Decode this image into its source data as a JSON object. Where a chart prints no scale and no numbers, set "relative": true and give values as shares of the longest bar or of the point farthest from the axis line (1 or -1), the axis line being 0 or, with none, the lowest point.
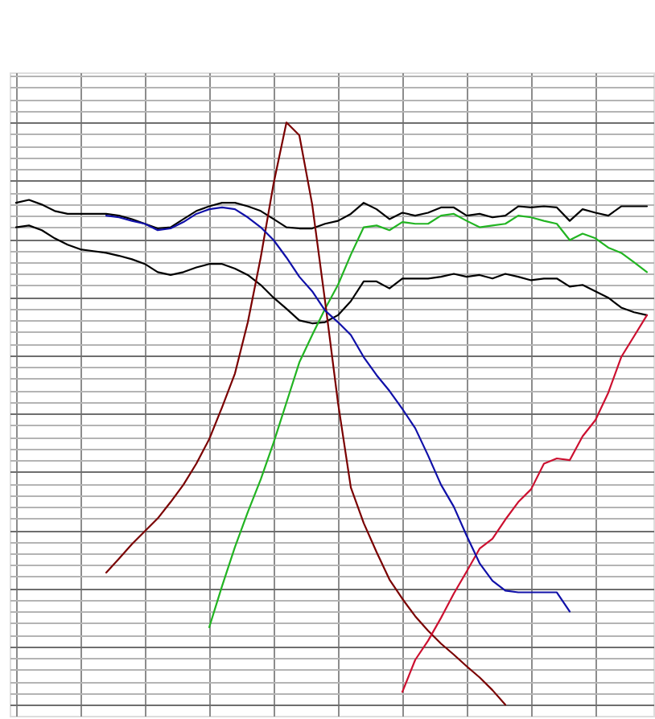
{
  "chart_data": {
    "type": "line",
    "relative": true,
    "grid": true,
    "line_style": "solid",
    "categories": [
      null,
      null,
      null,
      null,
      null,
      null,
      null,
      null,
      null,
      null,
      null,
      null,
      null,
      null,
      null,
      null,
      null,
      null,
      null,
      null,
      null,
      null,
      null,
      null,
      null,
      null,
      null,
      null,
      null,
      null,
      null,
      null,
      null,
      null,
      null,
      null,
      null,
      null,
      null,
      null,
      null,
      null,
      null,
      null,
      null,
      null,
      null,
      null,
      null,
      null
    ],
    "series": [
      {
        "color": "#000000",
        "values": [
          0.862,
          0.867,
          0.859,
          0.848,
          0.843,
          0.843,
          0.843,
          0.843,
          0.84,
          0.834,
          0.826,
          0.818,
          0.82,
          0.834,
          0.848,
          0.856,
          0.862,
          0.862,
          0.856,
          0.848,
          0.834,
          0.82,
          0.818,
          0.818,
          0.826,
          0.831,
          0.843,
          0.862,
          0.851,
          0.834,
          0.845,
          0.84,
          0.845,
          0.854,
          0.854,
          0.84,
          0.843,
          0.837,
          0.84,
          0.856,
          0.854,
          0.856,
          0.854,
          0.831,
          0.851,
          0.845,
          0.84,
          0.856,
          0.856,
          0.856
        ]
      },
      {
        "color": "#000000",
        "values": [
          0.82,
          0.823,
          0.815,
          0.801,
          0.79,
          0.782,
          0.779,
          0.776,
          0.771,
          0.765,
          0.757,
          0.743,
          0.738,
          0.743,
          0.751,
          0.757,
          0.757,
          0.749,
          0.738,
          0.721,
          0.699,
          0.68,
          0.66,
          0.655,
          0.657,
          0.669,
          0.693,
          0.727,
          0.727,
          0.715,
          0.732,
          0.732,
          0.732,
          0.735,
          0.74,
          0.735,
          0.738,
          0.732,
          0.74,
          0.735,
          0.729,
          0.732,
          0.732,
          0.718,
          0.721,
          0.71,
          0.699,
          0.682,
          0.674,
          0.669
        ]
      },
      {
        "color": "#22b422",
        "values": [
          null,
          null,
          null,
          null,
          null,
          null,
          null,
          null,
          null,
          null,
          null,
          null,
          null,
          null,
          null,
          0.133,
          0.204,
          0.271,
          0.331,
          0.387,
          0.45,
          0.519,
          0.588,
          0.635,
          0.68,
          0.721,
          0.773,
          0.82,
          0.823,
          0.815,
          0.829,
          0.826,
          0.826,
          0.84,
          0.843,
          0.831,
          0.82,
          0.823,
          0.826,
          0.84,
          0.837,
          0.831,
          0.826,
          0.798,
          0.809,
          0.801,
          0.785,
          0.776,
          0.76,
          0.743
        ]
      },
      {
        "color": "#7a0000",
        "values": [
          null,
          null,
          null,
          null,
          null,
          null,
          null,
          0.227,
          0.251,
          0.276,
          0.298,
          0.32,
          0.348,
          0.378,
          0.414,
          0.456,
          0.511,
          0.569,
          0.657,
          0.768,
          0.895,
          1.0,
          0.978,
          0.859,
          0.693,
          0.519,
          0.373,
          0.312,
          0.262,
          0.215,
          0.182,
          0.152,
          0.127,
          0.105,
          0.086,
          0.066,
          0.047,
          0.025,
          0.0,
          null,
          null,
          null,
          null,
          null,
          null,
          null,
          null,
          null,
          null,
          null
        ]
      },
      {
        "color": "#cc1030",
        "values": [
          null,
          null,
          null,
          null,
          null,
          null,
          null,
          null,
          null,
          null,
          null,
          null,
          null,
          null,
          null,
          null,
          null,
          null,
          null,
          null,
          null,
          null,
          null,
          null,
          null,
          null,
          null,
          null,
          null,
          null,
          0.022,
          0.077,
          0.11,
          0.149,
          0.191,
          0.229,
          0.268,
          0.285,
          0.318,
          0.348,
          0.37,
          0.414,
          0.423,
          0.42,
          0.461,
          0.489,
          0.536,
          0.597,
          0.633,
          0.669
        ]
      },
      {
        "color": "#1010a8",
        "values": [
          null,
          null,
          null,
          null,
          null,
          null,
          null,
          0.84,
          0.837,
          0.831,
          0.826,
          0.815,
          0.818,
          0.829,
          0.843,
          0.851,
          0.854,
          0.851,
          0.837,
          0.82,
          0.798,
          0.768,
          0.735,
          0.71,
          0.677,
          0.657,
          0.635,
          0.597,
          0.566,
          0.539,
          0.508,
          0.475,
          0.428,
          0.378,
          0.34,
          0.29,
          0.243,
          0.213,
          0.196,
          0.193,
          0.193,
          0.193,
          0.193,
          0.16,
          null,
          null,
          null,
          null,
          null,
          null
        ]
      }
    ]
  }
}
